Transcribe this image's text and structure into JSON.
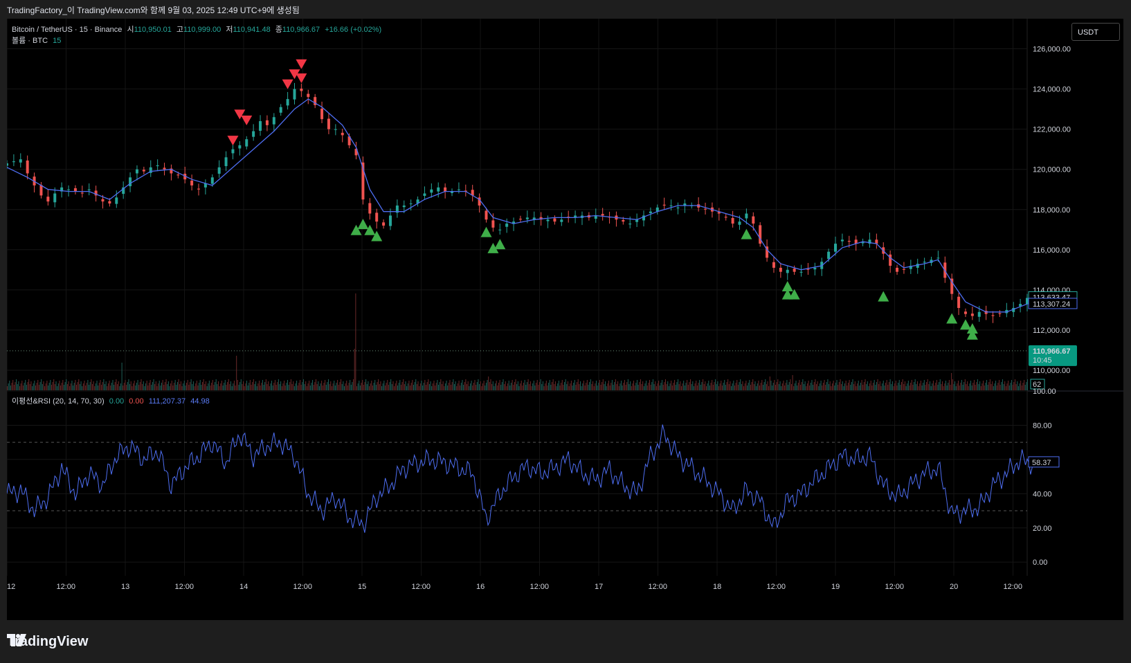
{
  "header": {
    "text": "TradingFactory_이 TradingView.com와 함께 9월 03, 2025 12:49 UTC+9에 생성됨"
  },
  "symbol_legend": {
    "name": "Bitcoin / TetherUS · 15 · Binance",
    "open_label": "시",
    "open": "110,950.01",
    "high_label": "고",
    "high": "110,999.00",
    "low_label": "저",
    "low": "110,941.48",
    "close_label": "종",
    "close": "110,966.67",
    "change": "+16.66 (+0.02%)"
  },
  "volume_legend": {
    "label": "볼륨 · BTC",
    "value": "15"
  },
  "rsi_legend": {
    "label": "이평선&RSI (20, 14, 70, 30)",
    "v1": "0.00",
    "v2": "0.00",
    "v3": "111,207.37",
    "v4": "44.98"
  },
  "currency_button": "USDT",
  "footer": {
    "brand": "TradingView"
  },
  "colors": {
    "up": "#26a69a",
    "down": "#ef5350",
    "ma": "#4e6ef2",
    "rsi": "#4e6ef2",
    "buy_signal": "#3fae49",
    "sell_signal": "#f23645",
    "background": "#000000"
  },
  "chart_data": [
    {
      "type": "candlestick",
      "title": "Bitcoin / TetherUS · 15 · Binance",
      "ylim": [
        109000,
        127500
      ],
      "y_ticks": [
        "126,000.00",
        "124,000.00",
        "122,000.00",
        "120,000.00",
        "118,000.00",
        "116,000.00",
        "114,000.00",
        "112,000.00",
        "110,000.00"
      ],
      "y_tick_values": [
        126000,
        124000,
        122000,
        120000,
        118000,
        116000,
        114000,
        112000,
        110000
      ],
      "x_ticks": [
        "12",
        "12:00",
        "13",
        "12:00",
        "14",
        "12:00",
        "15",
        "12:00",
        "16",
        "12:00",
        "17",
        "12:00",
        "18",
        "12:00",
        "19",
        "12:00",
        "20",
        "12:00"
      ],
      "price_path": [
        [
          0,
          120300
        ],
        [
          2,
          120500
        ],
        [
          3,
          119800
        ],
        [
          4,
          119200
        ],
        [
          5,
          118700
        ],
        [
          6,
          118400
        ],
        [
          7,
          118800
        ],
        [
          8,
          119100
        ],
        [
          9,
          119000
        ],
        [
          10,
          118900
        ],
        [
          11,
          118800
        ],
        [
          12,
          119000
        ],
        [
          13,
          118700
        ],
        [
          14,
          118400
        ],
        [
          15,
          118300
        ],
        [
          16,
          118600
        ],
        [
          17,
          119100
        ],
        [
          18,
          119600
        ],
        [
          19,
          120000
        ],
        [
          20,
          119900
        ],
        [
          21,
          120100
        ],
        [
          22,
          120200
        ],
        [
          23,
          120000
        ],
        [
          24,
          119800
        ],
        [
          25,
          119700
        ],
        [
          26,
          119500
        ],
        [
          27,
          119200
        ],
        [
          28,
          119000
        ],
        [
          29,
          119300
        ],
        [
          30,
          119600
        ],
        [
          31,
          120100
        ],
        [
          32,
          120600
        ],
        [
          33,
          121000
        ],
        [
          34,
          121200
        ],
        [
          35,
          121500
        ],
        [
          36,
          121900
        ],
        [
          37,
          122400
        ],
        [
          38,
          122200
        ],
        [
          39,
          122600
        ],
        [
          40,
          123100
        ],
        [
          41,
          123500
        ],
        [
          42,
          124000
        ],
        [
          43,
          123900
        ],
        [
          44,
          123600
        ],
        [
          45,
          123200
        ],
        [
          46,
          122500
        ],
        [
          47,
          122000
        ],
        [
          48,
          122000
        ],
        [
          49,
          121700
        ],
        [
          50,
          121200
        ],
        [
          51,
          120700
        ],
        [
          52,
          118500
        ],
        [
          53,
          117800
        ],
        [
          54,
          117400
        ],
        [
          55,
          117200
        ],
        [
          56,
          117700
        ],
        [
          57,
          118200
        ],
        [
          58,
          118200
        ],
        [
          59,
          118300
        ],
        [
          60,
          118500
        ],
        [
          61,
          118800
        ],
        [
          62,
          119000
        ],
        [
          63,
          119100
        ],
        [
          64,
          118900
        ],
        [
          65,
          118900
        ],
        [
          66,
          119000
        ],
        [
          67,
          118900
        ],
        [
          68,
          118700
        ],
        [
          69,
          118200
        ],
        [
          70,
          117500
        ],
        [
          71,
          117100
        ],
        [
          72,
          117000
        ],
        [
          73,
          117300
        ],
        [
          74,
          117400
        ],
        [
          75,
          117500
        ],
        [
          76,
          117600
        ],
        [
          77,
          117600
        ],
        [
          78,
          117500
        ],
        [
          79,
          117500
        ],
        [
          80,
          117400
        ],
        [
          81,
          117500
        ],
        [
          82,
          117600
        ],
        [
          83,
          117700
        ],
        [
          84,
          117700
        ],
        [
          85,
          117600
        ],
        [
          86,
          117700
        ],
        [
          87,
          117700
        ],
        [
          88,
          117600
        ],
        [
          89,
          117500
        ],
        [
          90,
          117400
        ],
        [
          91,
          117300
        ],
        [
          92,
          117500
        ],
        [
          93,
          117700
        ],
        [
          94,
          117900
        ],
        [
          95,
          118100
        ],
        [
          96,
          118200
        ],
        [
          97,
          118200
        ],
        [
          98,
          118100
        ],
        [
          99,
          118300
        ],
        [
          100,
          118200
        ],
        [
          101,
          118100
        ],
        [
          102,
          118000
        ],
        [
          103,
          117900
        ],
        [
          104,
          117800
        ],
        [
          105,
          117600
        ],
        [
          106,
          117300
        ],
        [
          107,
          117400
        ],
        [
          108,
          117800
        ],
        [
          109,
          117300
        ],
        [
          110,
          116300
        ],
        [
          111,
          115600
        ],
        [
          112,
          115100
        ],
        [
          113,
          114900
        ],
        [
          114,
          115000
        ],
        [
          115,
          114900
        ],
        [
          116,
          114900
        ],
        [
          117,
          115000
        ],
        [
          118,
          115100
        ],
        [
          119,
          115400
        ],
        [
          120,
          115900
        ],
        [
          121,
          116300
        ],
        [
          122,
          116500
        ],
        [
          123,
          116400
        ],
        [
          124,
          116300
        ],
        [
          125,
          116400
        ],
        [
          126,
          116500
        ],
        [
          127,
          116300
        ],
        [
          128,
          115800
        ],
        [
          129,
          115200
        ],
        [
          130,
          114900
        ],
        [
          131,
          115000
        ],
        [
          132,
          115200
        ],
        [
          133,
          115300
        ],
        [
          134,
          115400
        ],
        [
          135,
          115500
        ],
        [
          136,
          115600
        ],
        [
          137,
          114600
        ],
        [
          138,
          113800
        ],
        [
          139,
          113100
        ],
        [
          140,
          112800
        ],
        [
          141,
          112700
        ],
        [
          142,
          112900
        ],
        [
          143,
          112800
        ],
        [
          144,
          112700
        ],
        [
          145,
          112800
        ],
        [
          146,
          113000
        ],
        [
          147,
          113100
        ],
        [
          148,
          113300
        ],
        [
          149,
          113600
        ]
      ],
      "ma_path": [
        [
          0,
          120100
        ],
        [
          3,
          119600
        ],
        [
          6,
          119000
        ],
        [
          9,
          118900
        ],
        [
          12,
          118900
        ],
        [
          15,
          118500
        ],
        [
          18,
          119300
        ],
        [
          21,
          119900
        ],
        [
          24,
          120000
        ],
        [
          27,
          119500
        ],
        [
          30,
          119200
        ],
        [
          33,
          120100
        ],
        [
          36,
          121000
        ],
        [
          39,
          121900
        ],
        [
          42,
          123000
        ],
        [
          44,
          123500
        ],
        [
          46,
          123100
        ],
        [
          49,
          122200
        ],
        [
          51,
          121100
        ],
        [
          53,
          119000
        ],
        [
          55,
          117900
        ],
        [
          58,
          117900
        ],
        [
          61,
          118500
        ],
        [
          64,
          118900
        ],
        [
          67,
          118900
        ],
        [
          69,
          118500
        ],
        [
          71,
          117600
        ],
        [
          74,
          117300
        ],
        [
          77,
          117500
        ],
        [
          80,
          117600
        ],
        [
          83,
          117600
        ],
        [
          86,
          117700
        ],
        [
          89,
          117600
        ],
        [
          92,
          117500
        ],
        [
          95,
          117900
        ],
        [
          98,
          118200
        ],
        [
          101,
          118200
        ],
        [
          104,
          117900
        ],
        [
          107,
          117600
        ],
        [
          109,
          117100
        ],
        [
          111,
          116000
        ],
        [
          113,
          115300
        ],
        [
          116,
          115000
        ],
        [
          119,
          115200
        ],
        [
          122,
          116100
        ],
        [
          125,
          116400
        ],
        [
          127,
          116300
        ],
        [
          129,
          115600
        ],
        [
          131,
          115100
        ],
        [
          134,
          115300
        ],
        [
          136,
          115500
        ],
        [
          138,
          114400
        ],
        [
          140,
          113400
        ],
        [
          143,
          112900
        ],
        [
          146,
          112900
        ],
        [
          149,
          113300
        ]
      ],
      "sell_signals": [
        [
          33,
          121400
        ],
        [
          34,
          122700
        ],
        [
          35,
          122400
        ],
        [
          41,
          124200
        ],
        [
          42,
          124700
        ],
        [
          43,
          125200
        ],
        [
          43,
          124500
        ]
      ],
      "buy_signals": [
        [
          51,
          117000
        ],
        [
          52,
          117300
        ],
        [
          53,
          117000
        ],
        [
          54,
          116700
        ],
        [
          70,
          116900
        ],
        [
          71,
          116100
        ],
        [
          72,
          116300
        ],
        [
          108,
          116800
        ],
        [
          114,
          114200
        ],
        [
          114,
          113800
        ],
        [
          115,
          113800
        ],
        [
          128,
          113700
        ],
        [
          138,
          112600
        ],
        [
          140,
          112300
        ],
        [
          141,
          112100
        ],
        [
          141,
          111800
        ]
      ],
      "last_price": "110,966.67",
      "last_price_value": 110966.67,
      "countdown": "10:45",
      "price_tags": [
        {
          "text": "113,633.47",
          "value": 113633.47,
          "color": "#26a69a"
        },
        {
          "text": "113,307.24",
          "value": 113307.24,
          "color": "#4e6ef2"
        }
      ],
      "volume_tag": "62"
    },
    {
      "type": "line",
      "title": "이평선&RSI (20, 14, 70, 30)",
      "ylim": [
        -8,
        100
      ],
      "y_ticks": [
        "100.00",
        "80.00",
        "60.00",
        "40.00",
        "20.00",
        "0.00"
      ],
      "y_tick_values": [
        100,
        80,
        60,
        40,
        20,
        0
      ],
      "bands": [
        70,
        30
      ],
      "rsi_path": [
        [
          0,
          40
        ],
        [
          2,
          42
        ],
        [
          4,
          30
        ],
        [
          6,
          38
        ],
        [
          8,
          55
        ],
        [
          10,
          40
        ],
        [
          12,
          52
        ],
        [
          14,
          45
        ],
        [
          16,
          62
        ],
        [
          18,
          68
        ],
        [
          20,
          60
        ],
        [
          22,
          65
        ],
        [
          24,
          45
        ],
        [
          26,
          55
        ],
        [
          28,
          62
        ],
        [
          30,
          70
        ],
        [
          32,
          58
        ],
        [
          34,
          75
        ],
        [
          36,
          62
        ],
        [
          38,
          68
        ],
        [
          40,
          70
        ],
        [
          42,
          62
        ],
        [
          44,
          40
        ],
        [
          46,
          30
        ],
        [
          48,
          38
        ],
        [
          50,
          26
        ],
        [
          52,
          22
        ],
        [
          54,
          38
        ],
        [
          56,
          45
        ],
        [
          58,
          55
        ],
        [
          60,
          58
        ],
        [
          62,
          60
        ],
        [
          64,
          58
        ],
        [
          66,
          55
        ],
        [
          68,
          52
        ],
        [
          70,
          25
        ],
        [
          72,
          40
        ],
        [
          74,
          50
        ],
        [
          76,
          56
        ],
        [
          78,
          52
        ],
        [
          80,
          55
        ],
        [
          82,
          60
        ],
        [
          84,
          52
        ],
        [
          86,
          48
        ],
        [
          88,
          54
        ],
        [
          90,
          45
        ],
        [
          92,
          40
        ],
        [
          94,
          62
        ],
        [
          96,
          75
        ],
        [
          98,
          62
        ],
        [
          100,
          55
        ],
        [
          102,
          48
        ],
        [
          104,
          40
        ],
        [
          106,
          30
        ],
        [
          108,
          42
        ],
        [
          110,
          36
        ],
        [
          112,
          20
        ],
        [
          114,
          36
        ],
        [
          116,
          40
        ],
        [
          118,
          48
        ],
        [
          120,
          55
        ],
        [
          122,
          62
        ],
        [
          124,
          60
        ],
        [
          126,
          62
        ],
        [
          128,
          45
        ],
        [
          130,
          38
        ],
        [
          132,
          45
        ],
        [
          134,
          52
        ],
        [
          136,
          55
        ],
        [
          138,
          28
        ],
        [
          140,
          30
        ],
        [
          142,
          32
        ],
        [
          144,
          45
        ],
        [
          146,
          52
        ],
        [
          148,
          60
        ],
        [
          149,
          58
        ]
      ],
      "value_tag": "58.37"
    }
  ]
}
